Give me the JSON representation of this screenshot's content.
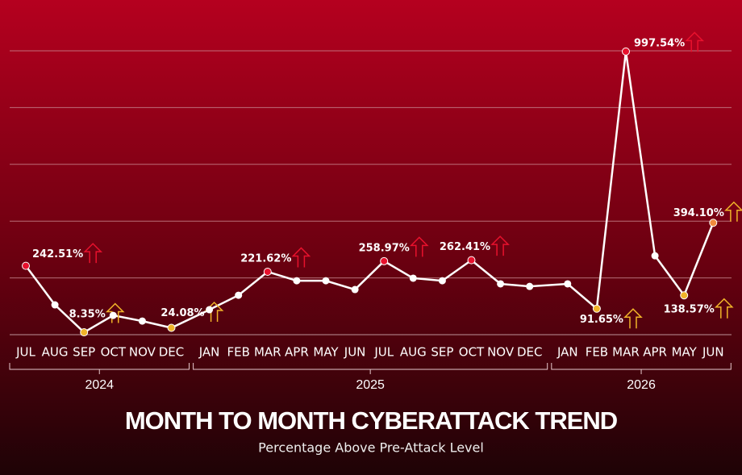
{
  "chart_data": {
    "type": "line",
    "title": "MONTH TO MONTH CYBERATTACK TREND",
    "subtitle": "Percentage Above Pre-Attack Level",
    "groups": [
      {
        "label": "2024",
        "months": [
          "JUL",
          "AUG",
          "SEP",
          "OCT",
          "NOV",
          "DEC"
        ]
      },
      {
        "label": "2025",
        "months": [
          "JAN",
          "FEB",
          "MAR",
          "APR",
          "MAY",
          "JUN",
          "JUL",
          "AUG",
          "SEP",
          "OCT",
          "NOV",
          "DEC"
        ]
      },
      {
        "label": "2026",
        "months": [
          "JAN",
          "FEB",
          "MAR",
          "APR",
          "MAY",
          "JUN"
        ]
      }
    ],
    "values": [
      242.51,
      105,
      8.35,
      68,
      48,
      24.08,
      88,
      139,
      221.62,
      190,
      190,
      159,
      258.97,
      199,
      190,
      262.41,
      179,
      170,
      179,
      91.65,
      997.54,
      278,
      138.57,
      394.1
    ],
    "value_labels": [
      "242.51%",
      null,
      "8.35%",
      null,
      null,
      "24.08%",
      null,
      null,
      "221.62%",
      null,
      null,
      null,
      "258.97%",
      null,
      null,
      "262.41%",
      null,
      null,
      null,
      "91.65%",
      "997.54%",
      null,
      "138.57%",
      "394.10%"
    ],
    "point_colors": [
      "#e8112d",
      "#ffffff",
      "#f0b429",
      "#ffffff",
      "#ffffff",
      "#f0b429",
      "#ffffff",
      "#ffffff",
      "#e8112d",
      "#ffffff",
      "#ffffff",
      "#ffffff",
      "#e8112d",
      "#ffffff",
      "#ffffff",
      "#e8112d",
      "#ffffff",
      "#ffffff",
      "#ffffff",
      "#f0b429",
      "#e8112d",
      "#ffffff",
      "#f0b429",
      "#f08a3c"
    ],
    "line_color": "#ffffff",
    "ylim": [
      0,
      1000
    ],
    "yticks": [
      0,
      200,
      400,
      600,
      800,
      1000
    ],
    "grid": true
  }
}
